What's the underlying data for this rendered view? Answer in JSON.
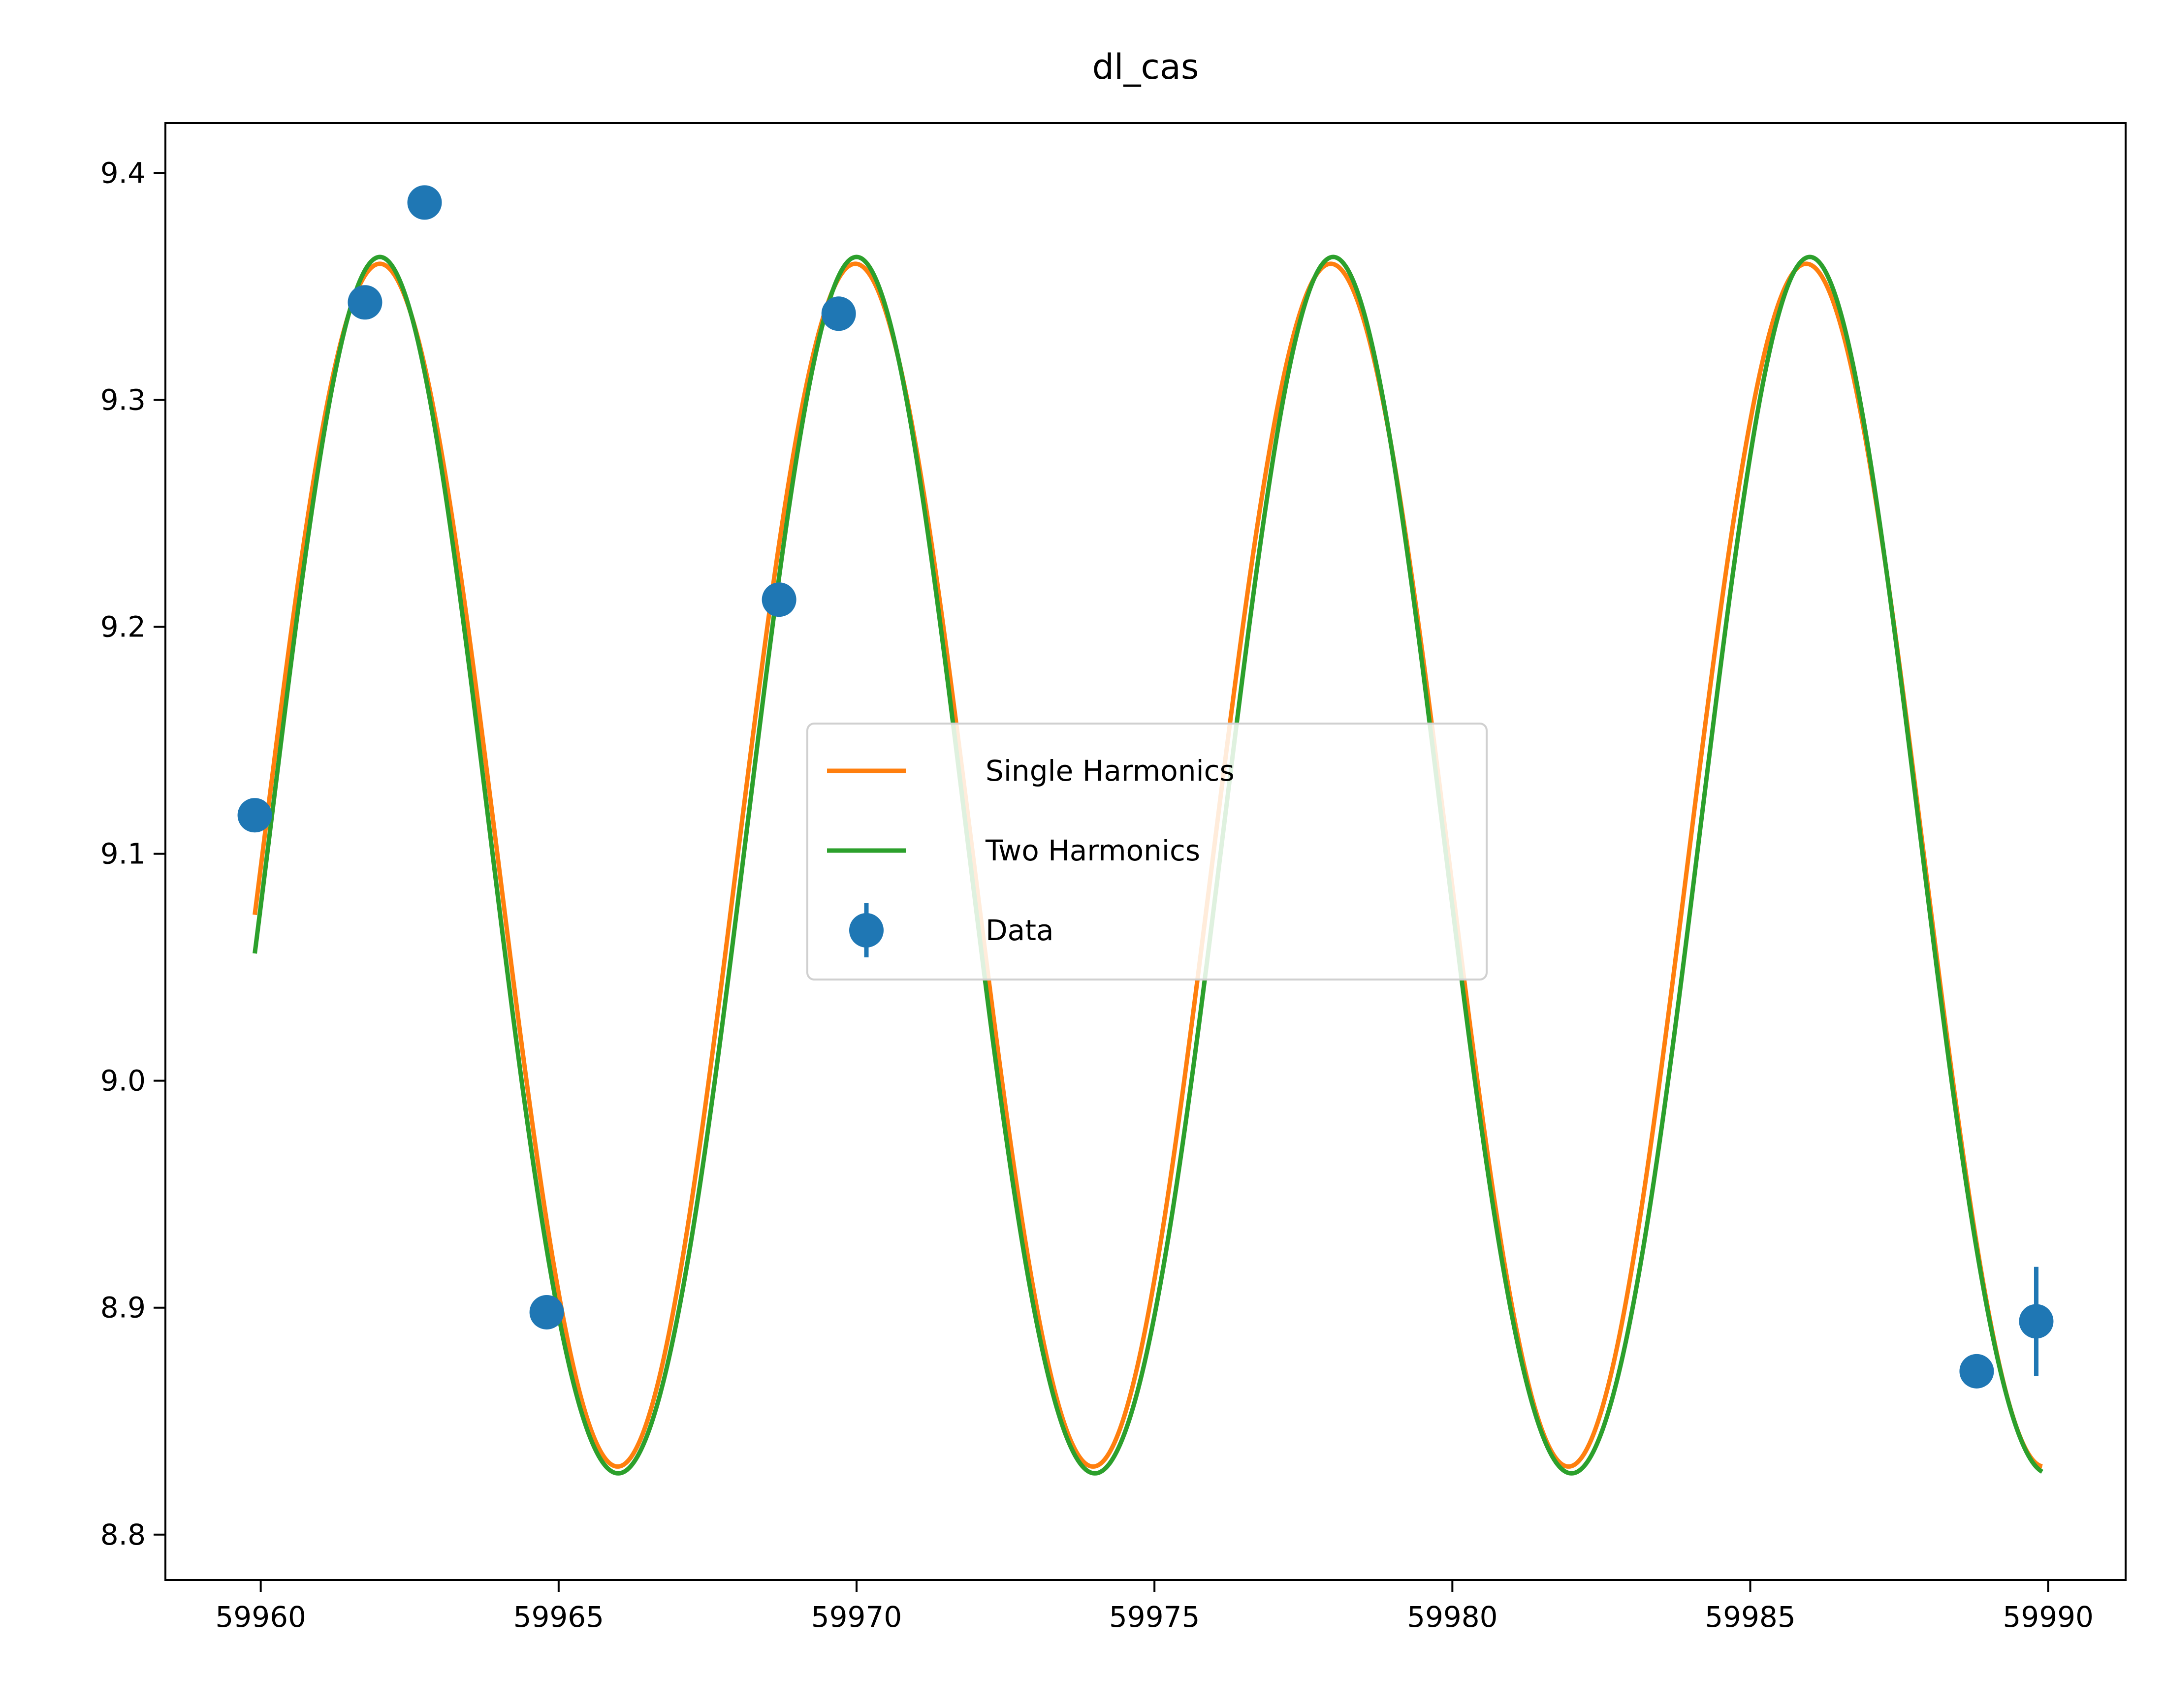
{
  "chart_data": {
    "type": "line",
    "title": "dl_cas",
    "xlabel": "",
    "ylabel": "",
    "xlim": [
      59958.4,
      59991.3
    ],
    "ylim": [
      8.78,
      9.422
    ],
    "xticks": [
      59960,
      59965,
      59970,
      59975,
      59980,
      59985,
      59990
    ],
    "yticks": [
      8.8,
      8.9,
      9.0,
      9.1,
      9.2,
      9.3,
      9.4
    ],
    "xtick_labels": [
      "59960",
      "59965",
      "59970",
      "59975",
      "59980",
      "59985",
      "59990"
    ],
    "ytick_labels": [
      "8.8",
      "8.9",
      "9.0",
      "9.1",
      "9.2",
      "9.3",
      "9.4"
    ],
    "grid": false,
    "legend_position": "center",
    "x_range": [
      59959.9,
      59989.9
    ],
    "series": [
      {
        "name": "Single Harmonics",
        "kind": "line",
        "color": "#ff7f0e",
        "model": {
          "mean": 9.095,
          "amplitude": 0.265,
          "period": 7.98,
          "phase_max_x": 59962.0
        }
      },
      {
        "name": "Two Harmonics",
        "kind": "line",
        "color": "#2ca02c",
        "model": {
          "mean": 9.086,
          "amplitude": 0.268,
          "amplitude2": 0.009,
          "period": 8.0,
          "phase_max_x": 59962.0
        }
      },
      {
        "name": "Data",
        "kind": "errorbar",
        "color": "#1f77b4",
        "x": [
          59959.9,
          59961.75,
          59962.75,
          59964.8,
          59968.7,
          59969.7,
          59988.8,
          59989.8
        ],
        "y": [
          9.117,
          9.343,
          9.387,
          8.898,
          9.212,
          9.338,
          8.872,
          8.894
        ],
        "yerr": [
          0.005,
          0.005,
          0.005,
          0.005,
          0.005,
          0.005,
          0.005,
          0.024
        ]
      }
    ]
  }
}
